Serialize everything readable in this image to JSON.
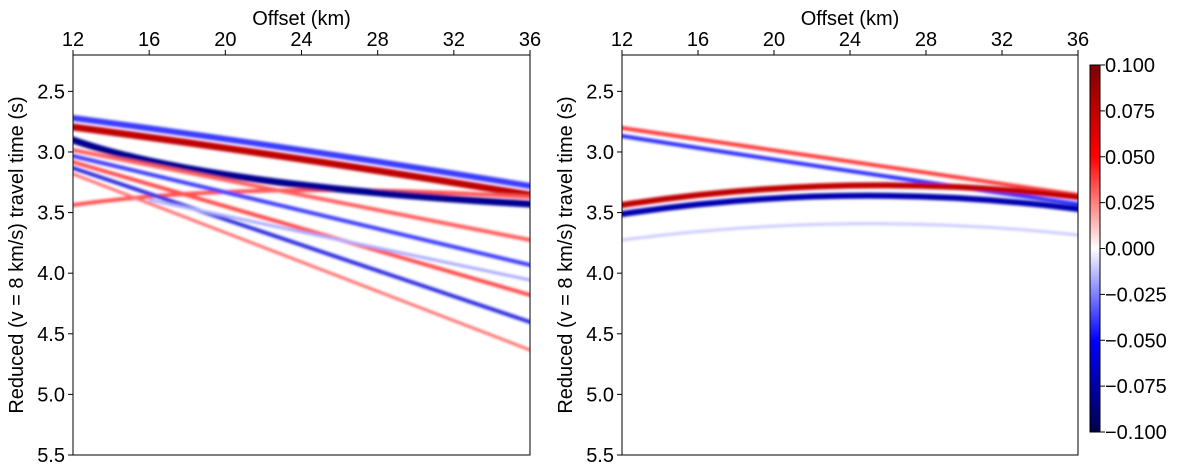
{
  "chart_data": [
    {
      "type": "heatmap",
      "xlabel": "Offset (km)",
      "ylabel": "Reduced (v = 8 km/s) travel time (s)",
      "xlim": [
        12,
        36
      ],
      "xticks": [
        12,
        16,
        20,
        24,
        28,
        32,
        36
      ],
      "ylim": [
        2.2,
        5.5
      ],
      "yticks": [
        2.5,
        {
          "value": 3,
          "label": "3.0"
        },
        3.5,
        {
          "value": 4,
          "label": "4.0"
        },
        4.5,
        {
          "value": 5,
          "label": "5.0"
        },
        5.5
      ]
    },
    {
      "type": "heatmap",
      "xlabel": "Offset (km)",
      "ylabel": "Reduced (v = 8 km/s) travel time (s)",
      "xlim": [
        12,
        36
      ],
      "xticks": [
        12,
        16,
        20,
        24,
        28,
        32,
        36
      ],
      "ylim": [
        2.2,
        5.5
      ],
      "yticks": [
        2.5,
        {
          "value": 3,
          "label": "3.0"
        },
        3.5,
        {
          "value": 4,
          "label": "4.0"
        },
        4.5,
        {
          "value": 5,
          "label": "5.0"
        },
        5.5
      ],
      "colorbar": {
        "lim": [
          -0.1,
          0.1
        ],
        "colors": [
          "#00004c",
          "#0000ff",
          "#ffffff",
          "#ff0000",
          "#7f0000"
        ],
        "ticks": [
          {
            "value": 0.1,
            "label": "0.100"
          },
          {
            "value": 0.075,
            "label": "0.075"
          },
          {
            "value": 0.05,
            "label": "0.050"
          },
          {
            "value": 0.025,
            "label": "0.025"
          },
          {
            "value": 0,
            "label": "0.000"
          },
          {
            "value": -0.025,
            "label": "−0.025"
          },
          {
            "value": -0.05,
            "label": "−0.050"
          },
          {
            "value": -0.075,
            "label": "−0.075"
          },
          {
            "value": -0.1,
            "label": "−0.100"
          }
        ]
      }
    }
  ]
}
